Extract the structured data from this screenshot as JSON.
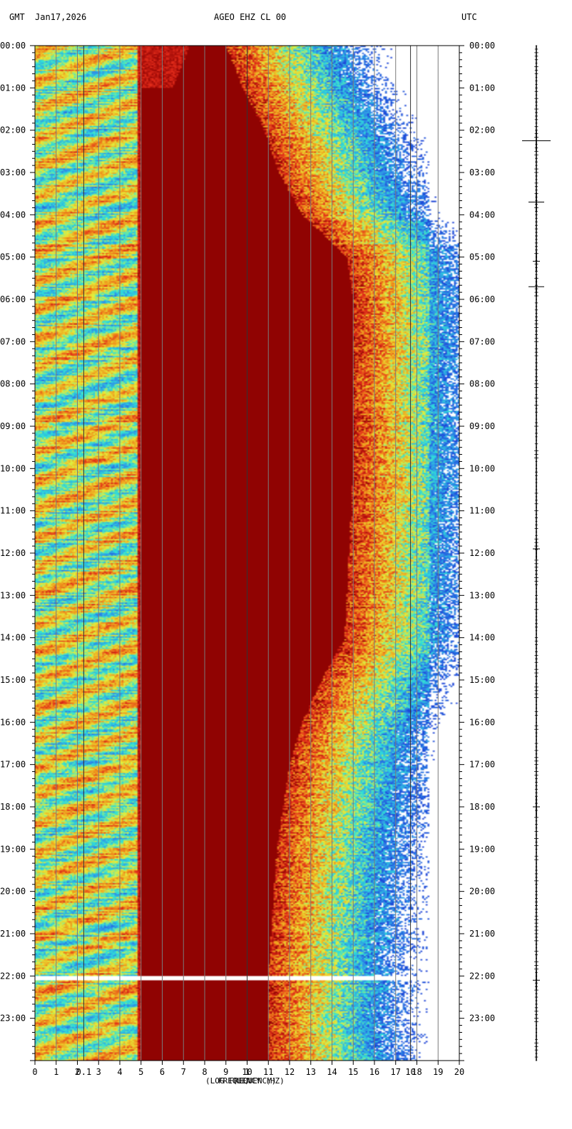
{
  "header": {
    "left_tz": "GMT",
    "date": "Jan17,2026",
    "station": "AGEO EHZ CL 00",
    "right_tz": "UTC"
  },
  "footer": {
    "xlabel_freq": "FREQUENCY (HZ)",
    "xlabel_log": "(LOG FREQUENCY)",
    "corner_mark": "\u0001"
  },
  "chart_data": {
    "type": "heatmap",
    "title": "AGEO EHZ CL 00",
    "x_axis": {
      "label": "FREQUENCY (HZ)",
      "range": [
        0,
        20
      ],
      "ticks": [
        "0",
        "1",
        "2",
        "3",
        "4",
        "5",
        "6",
        "7",
        "8",
        "9",
        "10",
        "11",
        "12",
        "13",
        "14",
        "15",
        "16",
        "17",
        "18",
        "19",
        "20"
      ],
      "secondary_label": "(LOG FREQUENCY)",
      "secondary_ticks": [
        {
          "label": "0.1",
          "at_hz": 2.3
        },
        {
          "label": "1",
          "at_hz": 10.0
        },
        {
          "label": "10",
          "at_hz": 17.7
        }
      ]
    },
    "y_axis": {
      "label": "UTC",
      "range_hours": [
        0,
        24
      ],
      "ticks": [
        "00:00",
        "01:00",
        "02:00",
        "03:00",
        "04:00",
        "05:00",
        "06:00",
        "07:00",
        "08:00",
        "09:00",
        "10:00",
        "11:00",
        "12:00",
        "13:00",
        "14:00",
        "15:00",
        "16:00",
        "17:00",
        "18:00",
        "19:00",
        "20:00",
        "21:00",
        "22:00",
        "23:00"
      ],
      "minor_ticks_per_hour": 6
    },
    "colormap": [
      "#1b3fd6",
      "#2f8fe8",
      "#2fe0d8",
      "#e6ef3a",
      "#f09a1c",
      "#e12a1a",
      "#8b0000"
    ],
    "saturated_color": "#8b0000",
    "data_gap_hour": 22.05,
    "high_energy_band": [
      {
        "hour": 0,
        "upper_hz": 9.0
      },
      {
        "hour": 1,
        "upper_hz": 9.8
      },
      {
        "hour": 2,
        "upper_hz": 10.8
      },
      {
        "hour": 3,
        "upper_hz": 11.5
      },
      {
        "hour": 4,
        "upper_hz": 12.6
      },
      {
        "hour": 5,
        "upper_hz": 14.7
      },
      {
        "hour": 6,
        "upper_hz": 15.0
      },
      {
        "hour": 10,
        "upper_hz": 15.0
      },
      {
        "hour": 14,
        "upper_hz": 14.6
      },
      {
        "hour": 15,
        "upper_hz": 13.5
      },
      {
        "hour": 16,
        "upper_hz": 12.6
      },
      {
        "hour": 17,
        "upper_hz": 12.0
      },
      {
        "hour": 19,
        "upper_hz": 11.4
      },
      {
        "hour": 22,
        "upper_hz": 11.0
      },
      {
        "hour": 24,
        "upper_hz": 11.0
      }
    ],
    "seismogram_events_hours": [
      2.25,
      3.7,
      5.1,
      5.7,
      11.9,
      18.0,
      22.1
    ]
  }
}
